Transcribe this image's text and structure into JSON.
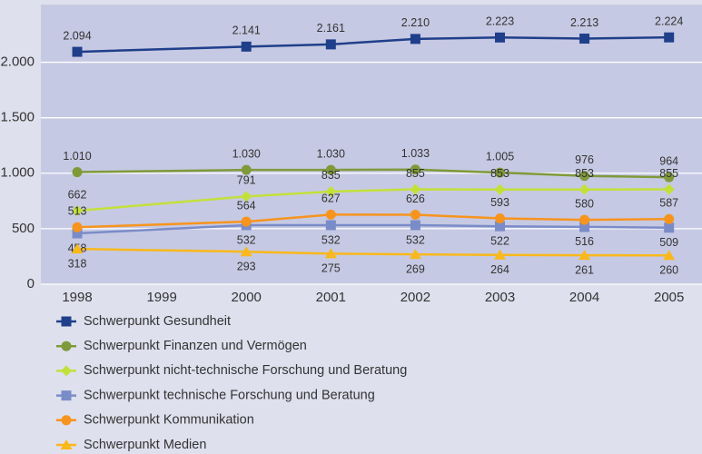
{
  "chart_data": {
    "type": "line",
    "x": [
      1998,
      2000,
      2001,
      2002,
      2003,
      2004,
      2005
    ],
    "xlim": [
      1997.57,
      2005.39
    ],
    "xticks": [
      1998,
      1999,
      2000,
      2001,
      2002,
      2003,
      2004,
      2005
    ],
    "ylim": [
      0,
      2520
    ],
    "yticks": [
      0,
      500,
      {
        "value": 1000,
        "label": "1.000"
      },
      {
        "value": 1500,
        "label": "1.500"
      },
      {
        "value": 2000,
        "label": "2.000"
      }
    ],
    "grid": true,
    "series": [
      {
        "name": "Schwerpunkt Gesundheit",
        "color": "#1f3f8a",
        "marker": "square",
        "label_pos": "above",
        "values": [
          2094,
          2141,
          2161,
          2210,
          2223,
          2213,
          2224
        ],
        "value_labels": [
          "2.094",
          "2.141",
          "2.161",
          "2.210",
          "2.223",
          "2.213",
          "2.224"
        ]
      },
      {
        "name": "Schwerpunkt Finanzen und Vermögen",
        "color": "#7f9a3a",
        "marker": "circle",
        "label_pos": "above",
        "values": [
          1010,
          1030,
          1030,
          1033,
          1005,
          976,
          964
        ],
        "value_labels": [
          "1.010",
          "1.030",
          "1.030",
          "1.033",
          "1.005",
          "976",
          "964"
        ]
      },
      {
        "name": "Schwerpunkt nicht-technische Forschung und Beratung",
        "color": "#c3e03a",
        "marker": "diamond",
        "label_pos": "above",
        "values": [
          662,
          791,
          835,
          855,
          853,
          853,
          855
        ]
      },
      {
        "name": "Schwerpunkt technische Forschung und Beratung",
        "color": "#7a8cc8",
        "marker": "square",
        "label_pos": "below",
        "values": [
          458,
          532,
          532,
          532,
          522,
          516,
          509
        ]
      },
      {
        "name": "Schwerpunkt Kommunikation",
        "color": "#f7941d",
        "marker": "circle",
        "label_pos": "above",
        "values": [
          513,
          564,
          627,
          626,
          593,
          580,
          587
        ]
      },
      {
        "name": "Schwerpunkt Medien",
        "color": "#f9b81b",
        "marker": "triangle",
        "label_pos": "below",
        "values": [
          318,
          293,
          275,
          269,
          264,
          261,
          260
        ]
      }
    ]
  }
}
